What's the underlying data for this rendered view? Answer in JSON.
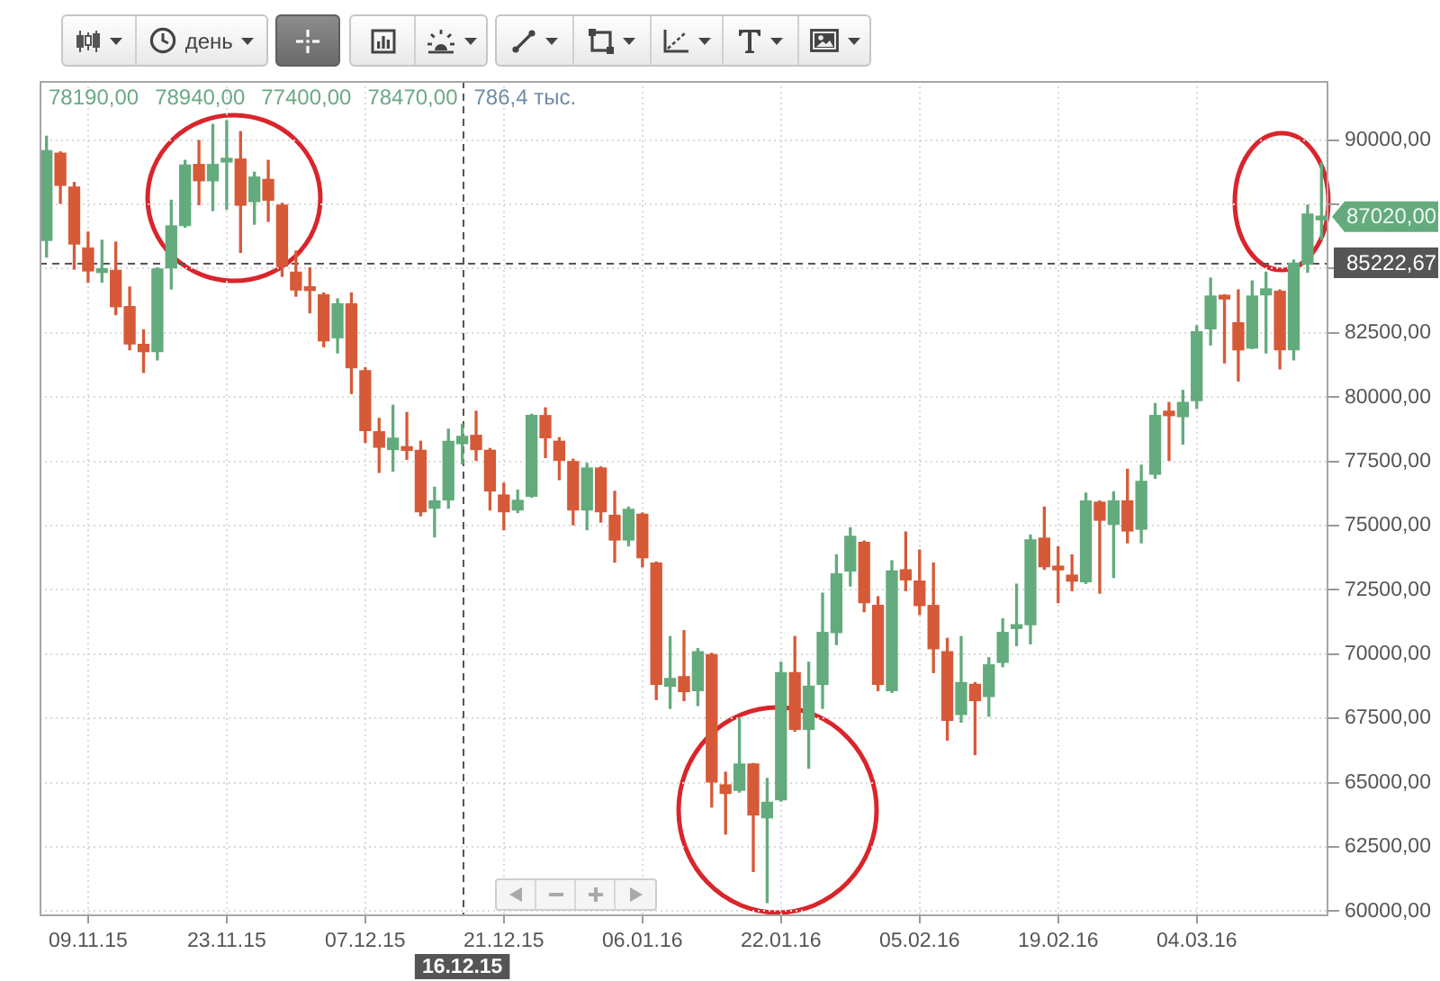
{
  "chart_data": {
    "type": "candlestick",
    "categories": [
      null,
      null,
      null,
      "09.11.15",
      null,
      null,
      null,
      null,
      null,
      null,
      null,
      null,
      null,
      "23.11.15",
      null,
      null,
      null,
      null,
      null,
      null,
      null,
      null,
      null,
      "07.12.15",
      null,
      null,
      null,
      null,
      null,
      null,
      "16.12.15",
      null,
      null,
      "21.12.15",
      null,
      null,
      null,
      null,
      null,
      null,
      null,
      null,
      null,
      "06.01.16",
      null,
      null,
      null,
      null,
      null,
      null,
      null,
      null,
      null,
      "22.01.16",
      null,
      null,
      null,
      null,
      null,
      null,
      null,
      null,
      null,
      "05.02.16",
      null,
      null,
      null,
      null,
      null,
      null,
      null,
      null,
      null,
      "19.02.16",
      null,
      null,
      null,
      null,
      null,
      null,
      null,
      null,
      null,
      "04.03.16",
      null,
      null,
      null,
      null,
      null,
      null,
      null,
      null,
      null
    ],
    "ohlc": [
      [
        86100,
        90150,
        85450,
        89590
      ],
      [
        89490,
        89540,
        87540,
        88240
      ],
      [
        88170,
        88350,
        84980,
        85960
      ],
      [
        85800,
        86420,
        84470,
        84910
      ],
      [
        84850,
        86100,
        84470,
        84900
      ],
      [
        84930,
        86030,
        83210,
        83520
      ],
      [
        83520,
        84280,
        81840,
        82070
      ],
      [
        82050,
        82610,
        80960,
        81770
      ],
      [
        81770,
        85030,
        81450,
        84980
      ],
      [
        85030,
        87660,
        84210,
        86660
      ],
      [
        86680,
        89210,
        86610,
        89030
      ],
      [
        89050,
        89980,
        87490,
        88420
      ],
      [
        88420,
        90610,
        87260,
        89050
      ],
      [
        89150,
        90750,
        87310,
        89200
      ],
      [
        89260,
        90330,
        85630,
        87470
      ],
      [
        87610,
        88750,
        86730,
        88560
      ],
      [
        88470,
        89210,
        86840,
        87660
      ],
      [
        87470,
        87540,
        84700,
        85100
      ],
      [
        84860,
        85680,
        83930,
        84170
      ],
      [
        84200,
        85030,
        83280,
        84150
      ],
      [
        83980,
        84050,
        81960,
        82190
      ],
      [
        82310,
        83820,
        81720,
        83630
      ],
      [
        83630,
        84050,
        80140,
        81140
      ],
      [
        81030,
        81140,
        78240,
        78700
      ],
      [
        78650,
        79170,
        77070,
        78050
      ],
      [
        77960,
        79680,
        77120,
        78400
      ],
      [
        77980,
        79400,
        77580,
        77930
      ],
      [
        77930,
        78280,
        75380,
        75540
      ],
      [
        75680,
        76490,
        74560,
        75960
      ],
      [
        76000,
        78750,
        75680,
        78280
      ],
      [
        78190,
        78940,
        77400,
        78470
      ],
      [
        78510,
        79450,
        77540,
        77960
      ],
      [
        77930,
        78000,
        75610,
        76350
      ],
      [
        76190,
        76650,
        74840,
        75540
      ],
      [
        75610,
        76380,
        75510,
        75980
      ],
      [
        76140,
        79330,
        76100,
        79280
      ],
      [
        79280,
        79580,
        77650,
        78420
      ],
      [
        78280,
        78420,
        76790,
        77540
      ],
      [
        77490,
        77580,
        75030,
        75610
      ],
      [
        75610,
        77420,
        74840,
        77240
      ],
      [
        77240,
        77280,
        75140,
        75540
      ],
      [
        75400,
        76330,
        73580,
        74440
      ],
      [
        74440,
        75720,
        74210,
        75630
      ],
      [
        75440,
        75490,
        73400,
        73750
      ],
      [
        73540,
        73580,
        68230,
        68820
      ],
      [
        68750,
        70680,
        67890,
        69050
      ],
      [
        69120,
        70910,
        68190,
        68540
      ],
      [
        68580,
        70210,
        68000,
        70090
      ],
      [
        69980,
        70030,
        64050,
        65020
      ],
      [
        64910,
        65400,
        63000,
        64580
      ],
      [
        64700,
        67490,
        64630,
        65720
      ],
      [
        65720,
        65740,
        61540,
        63740
      ],
      [
        63630,
        65160,
        60330,
        64230
      ],
      [
        64330,
        69680,
        64280,
        69280
      ],
      [
        69280,
        70680,
        67000,
        67070
      ],
      [
        67070,
        69680,
        65560,
        68750
      ],
      [
        68820,
        72370,
        67890,
        70840
      ],
      [
        70840,
        73860,
        70370,
        73120
      ],
      [
        73230,
        74910,
        72650,
        74580
      ],
      [
        74350,
        74400,
        71650,
        72000
      ],
      [
        71890,
        72230,
        68580,
        68820
      ],
      [
        68580,
        73630,
        68510,
        73230
      ],
      [
        73280,
        74750,
        72470,
        72890
      ],
      [
        72840,
        74050,
        71540,
        71890
      ],
      [
        71890,
        73540,
        69280,
        70210
      ],
      [
        70090,
        70610,
        66650,
        67420
      ],
      [
        67650,
        70680,
        67350,
        68890
      ],
      [
        68820,
        68890,
        66090,
        68190
      ],
      [
        68350,
        69860,
        67580,
        69580
      ],
      [
        69680,
        71370,
        69510,
        70840
      ],
      [
        71000,
        72720,
        70330,
        71050
      ],
      [
        71140,
        74630,
        70400,
        74440
      ],
      [
        74510,
        75720,
        73300,
        73400
      ],
      [
        73350,
        74170,
        72000,
        73280
      ],
      [
        73070,
        73860,
        72470,
        72840
      ],
      [
        72820,
        76260,
        72750,
        75960
      ],
      [
        75910,
        75960,
        72370,
        75210
      ],
      [
        75050,
        76310,
        72980,
        75960
      ],
      [
        75960,
        77190,
        74330,
        74790
      ],
      [
        74860,
        77350,
        74330,
        76720
      ],
      [
        77000,
        79750,
        76840,
        79280
      ],
      [
        79450,
        79790,
        77540,
        79280
      ],
      [
        79240,
        80260,
        78170,
        79790
      ],
      [
        79860,
        82770,
        79560,
        82540
      ],
      [
        82660,
        84630,
        82030,
        83930
      ],
      [
        83910,
        83980,
        81330,
        83820
      ],
      [
        82890,
        84170,
        80630,
        81840
      ],
      [
        81910,
        84520,
        81890,
        83930
      ],
      [
        83980,
        84860,
        81720,
        84210
      ],
      [
        84120,
        84170,
        81100,
        81840
      ],
      [
        81840,
        85330,
        81450,
        85210
      ],
      [
        85170,
        87470,
        84860,
        87120
      ],
      [
        86900,
        89120,
        86140,
        87020
      ]
    ],
    "colors": [
      "#63ab7c",
      "#d65a38",
      "#d65a38",
      "#d65a38",
      "#63ab7c",
      "#d65a38",
      "#d65a38",
      "#d65a38",
      "#63ab7c",
      "#63ab7c",
      "#63ab7c",
      "#d65a38",
      "#63ab7c",
      "#63ab7c",
      "#d65a38",
      "#63ab7c",
      "#d65a38",
      "#d65a38",
      "#d65a38",
      "#d65a38",
      "#d65a38",
      "#63ab7c",
      "#d65a38",
      "#d65a38",
      "#d65a38",
      "#63ab7c",
      "#d65a38",
      "#d65a38",
      "#63ab7c",
      "#63ab7c",
      "#63ab7c",
      "#d65a38",
      "#d65a38",
      "#d65a38",
      "#63ab7c",
      "#63ab7c",
      "#d65a38",
      "#d65a38",
      "#d65a38",
      "#63ab7c",
      "#d65a38",
      "#d65a38",
      "#63ab7c",
      "#d65a38",
      "#d65a38",
      "#63ab7c",
      "#d65a38",
      "#63ab7c",
      "#d65a38",
      "#d65a38",
      "#63ab7c",
      "#d65a38",
      "#63ab7c",
      "#63ab7c",
      "#d65a38",
      "#63ab7c",
      "#63ab7c",
      "#63ab7c",
      "#63ab7c",
      "#d65a38",
      "#d65a38",
      "#63ab7c",
      "#d65a38",
      "#d65a38",
      "#d65a38",
      "#d65a38",
      "#63ab7c",
      "#d65a38",
      "#63ab7c",
      "#63ab7c",
      "#63ab7c",
      "#63ab7c",
      "#d65a38",
      "#d65a38",
      "#d65a38",
      "#63ab7c",
      "#d65a38",
      "#63ab7c",
      "#d65a38",
      "#63ab7c",
      "#63ab7c",
      "#d65a38",
      "#63ab7c",
      "#63ab7c",
      "#63ab7c",
      "#d65a38",
      "#d65a38",
      "#63ab7c",
      "#63ab7c",
      "#d65a38",
      "#63ab7c",
      "#63ab7c",
      "#63ab7c"
    ],
    "ylim": [
      59800,
      92300
    ],
    "yticks": [
      {
        "value": 60000,
        "label": "60000,00"
      },
      {
        "value": 62500,
        "label": "62500,00"
      },
      {
        "value": 65000,
        "label": "65000,00"
      },
      {
        "value": 67500,
        "label": "67500,00"
      },
      {
        "value": 70000,
        "label": "70000,00"
      },
      {
        "value": 72500,
        "label": "72500,00"
      },
      {
        "value": 75000,
        "label": "75000,00"
      },
      {
        "value": 77500,
        "label": "77500,00"
      },
      {
        "value": 80000,
        "label": "80000,00"
      },
      {
        "value": 82500,
        "label": "82500,00"
      },
      {
        "value": 85000,
        "label": null
      },
      {
        "value": 87500,
        "label": null
      },
      {
        "value": 90000,
        "label": "90000,00"
      }
    ],
    "grid": true,
    "ref_lines": [
      {
        "axis": "x",
        "value": "16.12.15",
        "color": "#555555",
        "line_style": "dashed"
      },
      {
        "axis": "y",
        "value": 85222.67,
        "label": "85222,67",
        "color": "#555555",
        "line_style": "dashed"
      }
    ],
    "annotations": [
      "день",
      "78190,00",
      "78940,00",
      "77400,00",
      "78470,00",
      "786,4 тыс.",
      "87020,00"
    ]
  }
}
